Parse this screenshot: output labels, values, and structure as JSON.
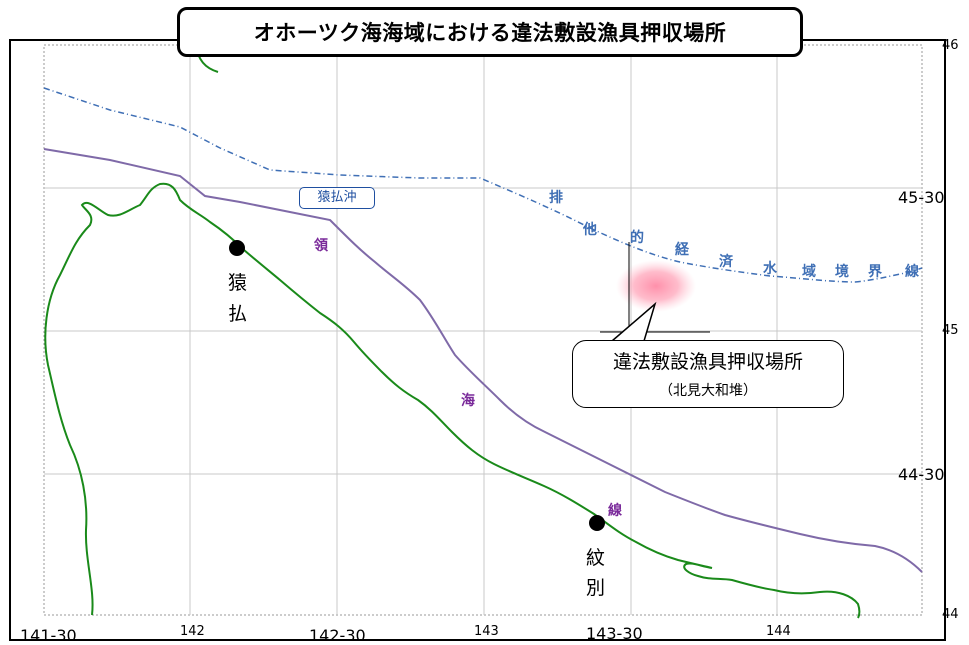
{
  "title": "オホーツク海海域における違法敷設漁具押収場所",
  "callout": {
    "main": "違法敷設漁具押収場所",
    "sub": "（北見大和堆）"
  },
  "area_label": "猿払沖",
  "eez_chars": [
    "排",
    "他",
    "的",
    "経",
    "済",
    "水",
    "域",
    "境",
    "界",
    "線"
  ],
  "territorial_chars": [
    "領",
    "海",
    "線"
  ],
  "cities": {
    "sarufutsu": [
      "猿",
      "払"
    ],
    "monbetsu": [
      "紋",
      "別"
    ]
  },
  "lat_labels": [
    "46",
    "45-30",
    "45",
    "44-30",
    "44"
  ],
  "lon_labels": [
    "141-30",
    "142",
    "142-30",
    "143",
    "143-30",
    "144"
  ],
  "colors": {
    "coast": "#1a8a1a",
    "territorial_line": "#7f6aa8",
    "eez_line": "#3f6fb5",
    "marker": "#ff6b8a",
    "grid": "#c8c8c8"
  },
  "icons": {
    "city_marker": "filled-circle",
    "seizure_marker": "pink-blur-spot"
  }
}
